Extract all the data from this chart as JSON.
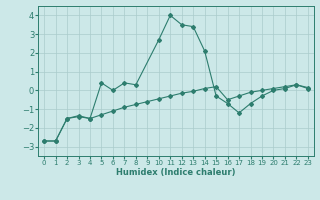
{
  "xlabel": "Humidex (Indice chaleur)",
  "ylabel": "",
  "background_color": "#cce8e8",
  "grid_color": "#aacccc",
  "line_color": "#2d7d6e",
  "xlim": [
    -0.5,
    23.5
  ],
  "ylim": [
    -3.5,
    4.5
  ],
  "yticks": [
    -3,
    -2,
    -1,
    0,
    1,
    2,
    3,
    4
  ],
  "xticks": [
    0,
    1,
    2,
    3,
    4,
    5,
    6,
    7,
    8,
    9,
    10,
    11,
    12,
    13,
    14,
    15,
    16,
    17,
    18,
    19,
    20,
    21,
    22,
    23
  ],
  "line1_x": [
    0,
    1,
    2,
    3,
    4,
    5,
    6,
    7,
    8,
    10,
    11,
    12,
    13,
    14,
    15,
    16,
    17,
    18,
    19,
    20,
    21,
    22,
    23
  ],
  "line1_y": [
    -2.7,
    -2.7,
    -1.5,
    -1.4,
    -1.5,
    0.4,
    0.0,
    0.4,
    0.3,
    2.7,
    4.0,
    3.5,
    3.4,
    2.1,
    -0.3,
    -0.7,
    -1.2,
    -0.7,
    -0.3,
    0.0,
    0.1,
    0.3,
    0.1
  ],
  "line2_x": [
    0,
    1,
    2,
    3,
    4,
    5,
    6,
    7,
    8,
    9,
    10,
    11,
    12,
    13,
    14,
    15,
    16,
    17,
    18,
    19,
    20,
    21,
    22,
    23
  ],
  "line2_y": [
    -2.7,
    -2.7,
    -1.5,
    -1.35,
    -1.5,
    -1.3,
    -1.1,
    -0.9,
    -0.75,
    -0.6,
    -0.45,
    -0.3,
    -0.15,
    -0.05,
    0.1,
    0.2,
    -0.5,
    -0.3,
    -0.1,
    0.0,
    0.1,
    0.2,
    0.3,
    0.15
  ],
  "xlabel_fontsize": 6,
  "tick_fontsize": 5,
  "ytick_fontsize": 6
}
